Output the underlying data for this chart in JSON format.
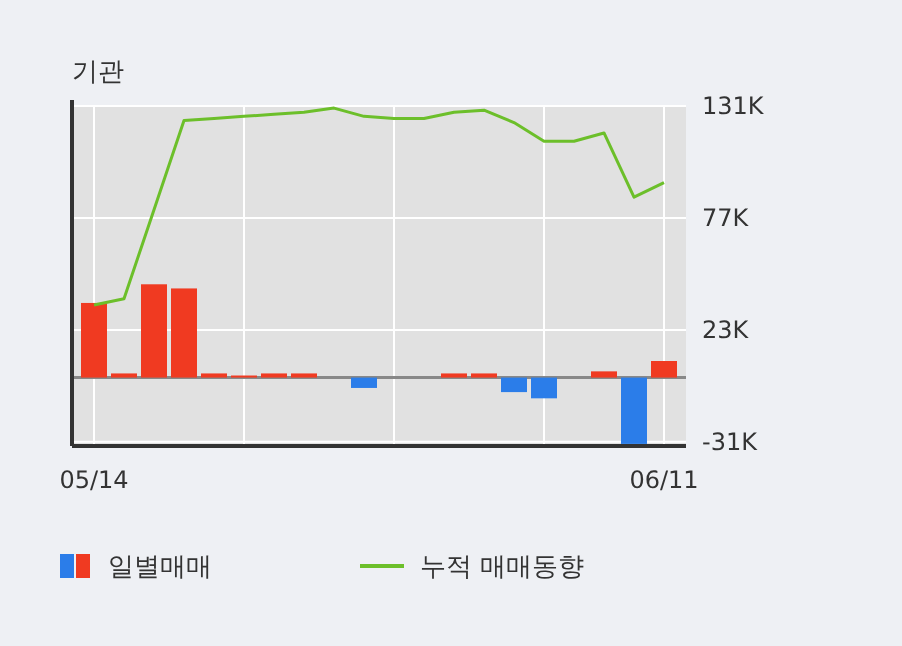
{
  "chart_data": {
    "type": "bar",
    "title": "기관",
    "categories": [
      "05/14",
      null,
      null,
      null,
      null,
      null,
      null,
      null,
      null,
      null,
      null,
      null,
      null,
      null,
      null,
      null,
      null,
      null,
      null,
      "06/11"
    ],
    "series": [
      {
        "name": "일별매매",
        "colors": [
          "#f03a21",
          "#f03a21",
          "#f03a21",
          "#f03a21",
          "#f03a21",
          "#f03a21",
          "#f03a21",
          "#f03a21",
          "#f03a21",
          "#2b7de9",
          "#f03a21",
          "#f03a21",
          "#f03a21",
          "#f03a21",
          "#2b7de9",
          "#2b7de9",
          "#f03a21",
          "#f03a21",
          "#2b7de9",
          "#f03a21"
        ],
        "values": [
          36,
          2,
          45,
          43,
          2,
          1,
          2,
          2,
          0,
          -5,
          0,
          0,
          2,
          2,
          -7,
          -10,
          0,
          3,
          -32,
          8
        ]
      },
      {
        "name": "누적 매매동향",
        "type": "line",
        "color": "#6cbf2a",
        "values": [
          35,
          38,
          81,
          124,
          125,
          126,
          127,
          128,
          130,
          126,
          125,
          125,
          128,
          129,
          123,
          114,
          114,
          118,
          87,
          94
        ]
      }
    ],
    "ylim": [
      -33,
      131
    ],
    "yticks": [
      {
        "value": 131,
        "label": "131K"
      },
      {
        "value": 77,
        "label": "77K"
      },
      {
        "value": 23,
        "label": "23K"
      },
      {
        "value": -31,
        "label": "-31K"
      }
    ],
    "grid": true,
    "legend": "bottom"
  }
}
